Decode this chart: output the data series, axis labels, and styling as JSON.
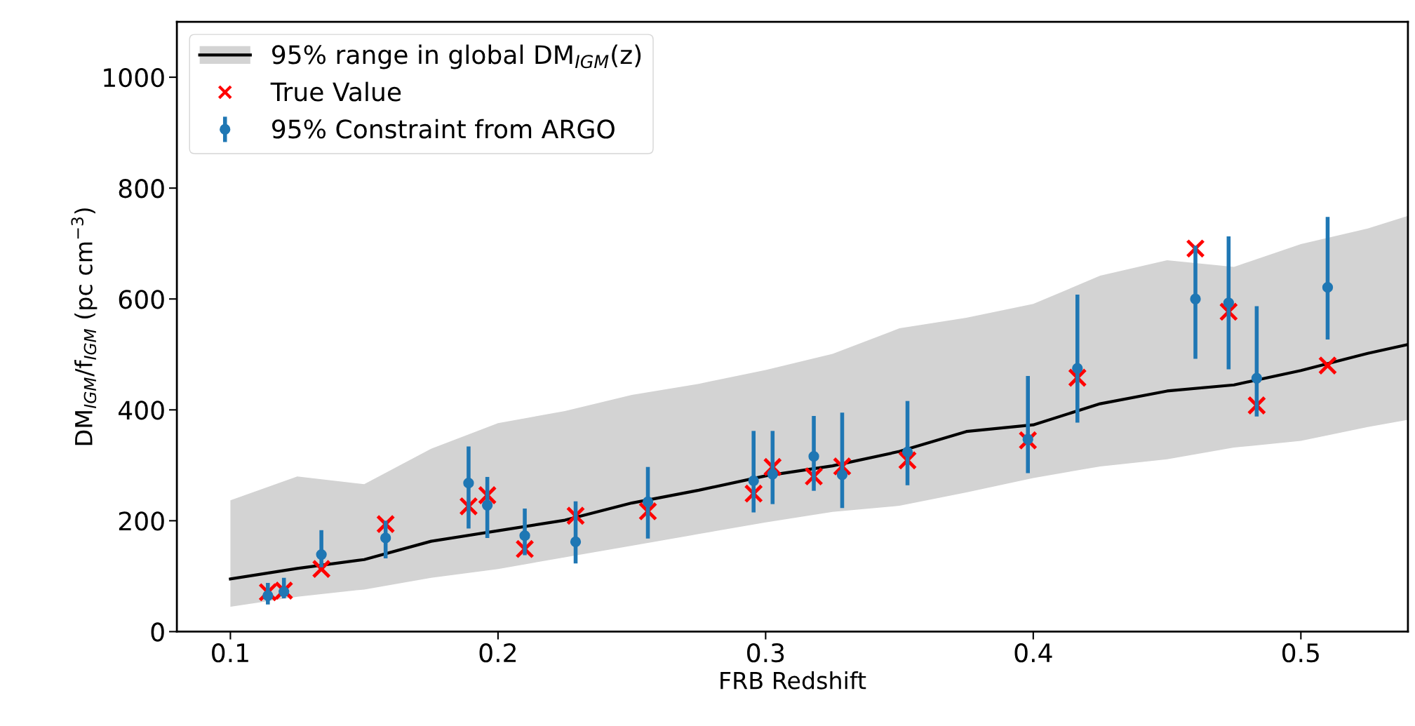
{
  "chart_data": {
    "type": "scatter",
    "xlabel": "FRB Redshift",
    "ylabel": "DM$_{IGM}$/f$_{IGM}$ (pc cm$^{−3}$)",
    "xlim": [
      0.08,
      0.54
    ],
    "ylim": [
      0,
      1100
    ],
    "xticks": [
      0.1,
      0.2,
      0.3,
      0.4,
      0.5
    ],
    "yticks": [
      0,
      200,
      400,
      600,
      800,
      1000
    ],
    "grid": false,
    "legend": "top left",
    "series": [
      {
        "type": "line",
        "name": "95% range in global DM$_{IGM}$(z)",
        "color": "#000000",
        "marker": "none",
        "line_style": "solid",
        "x": [
          0.1,
          0.125,
          0.15,
          0.175,
          0.2,
          0.225,
          0.25,
          0.275,
          0.3,
          0.325,
          0.35,
          0.375,
          0.4,
          0.425,
          0.45,
          0.475,
          0.5,
          0.525,
          0.54
        ],
        "values": [
          95,
          114,
          130,
          163,
          182,
          201,
          232,
          255,
          281,
          299,
          325,
          361,
          373,
          411,
          434,
          445,
          471,
          502,
          518
        ],
        "lower": [
          45,
          63,
          76,
          97,
          113,
          134,
          155,
          176,
          197,
          216,
          227,
          251,
          277,
          298,
          311,
          332,
          344,
          369,
          382
        ],
        "upper": [
          237,
          280,
          266,
          330,
          376,
          398,
          427,
          447,
          472,
          501,
          547,
          566,
          591,
          642,
          670,
          658,
          699,
          727,
          750
        ]
      },
      {
        "type": "scatter",
        "name": "True Value",
        "color": "#ff0000",
        "marker": "cross",
        "x": [
          0.114,
          0.12,
          0.134,
          0.158,
          0.189,
          0.196,
          0.21,
          0.229,
          0.256,
          0.2955,
          0.3026,
          0.318,
          0.3286,
          0.353,
          0.398,
          0.4165,
          0.4606,
          0.473,
          0.4835,
          0.51
        ],
        "values": [
          71,
          74,
          113,
          194,
          226,
          246,
          149,
          209,
          217,
          249,
          297,
          280,
          298,
          309,
          345,
          458,
          691,
          577,
          408,
          480
        ]
      },
      {
        "type": "scatter",
        "name": "95% Constraint from ARGO",
        "color": "#1f77b4",
        "marker": "circle",
        "x": [
          0.114,
          0.12,
          0.134,
          0.158,
          0.189,
          0.196,
          0.21,
          0.229,
          0.256,
          0.2955,
          0.3026,
          0.318,
          0.3286,
          0.353,
          0.398,
          0.4165,
          0.4606,
          0.473,
          0.4835,
          0.51
        ],
        "values": [
          65,
          72,
          139,
          169,
          268,
          228,
          173,
          162,
          234,
          272,
          284,
          316,
          283,
          324,
          347,
          475,
          600,
          593,
          457,
          621
        ],
        "errors": [
          [
            49,
            88
          ],
          [
            60,
            97
          ],
          [
            116,
            183
          ],
          [
            132,
            200
          ],
          [
            186,
            334
          ],
          [
            169,
            279
          ],
          [
            138,
            222
          ],
          [
            123,
            235
          ],
          [
            168,
            297
          ],
          [
            215,
            362
          ],
          [
            230,
            362
          ],
          [
            254,
            389
          ],
          [
            223,
            395
          ],
          [
            264,
            416
          ],
          [
            286,
            461
          ],
          [
            377,
            608
          ],
          [
            492,
            696
          ],
          [
            473,
            713
          ],
          [
            388,
            587
          ],
          [
            527,
            748
          ]
        ]
      }
    ]
  }
}
